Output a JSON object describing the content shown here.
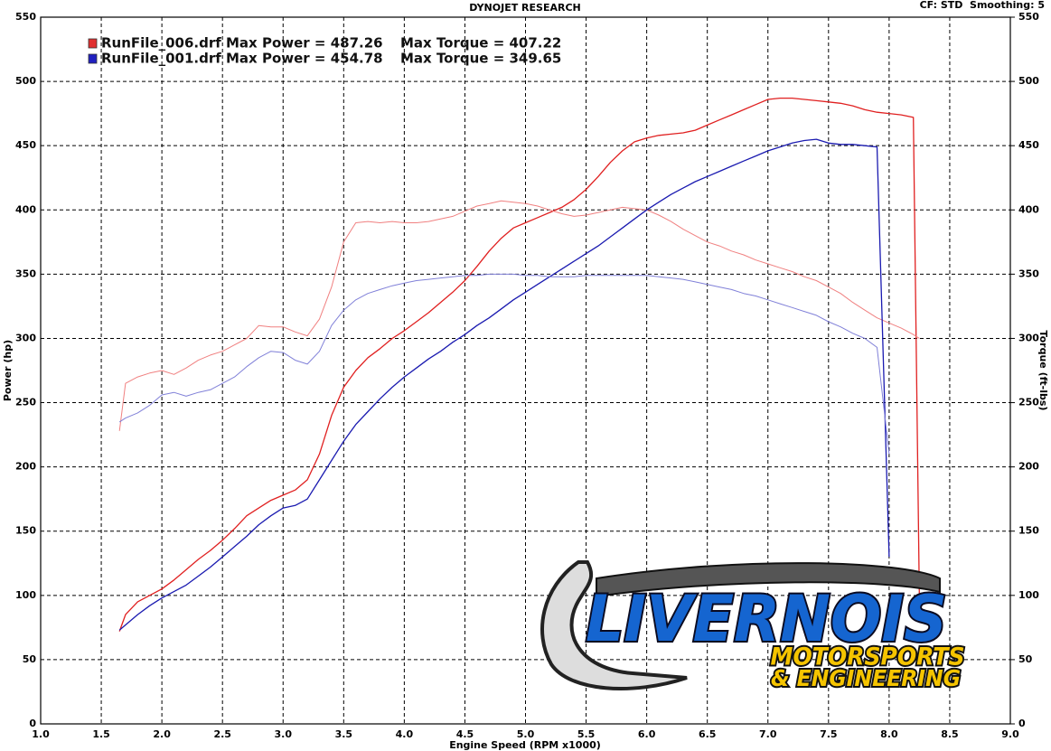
{
  "chart_data": {
    "type": "line",
    "title": "DYNOJET RESEARCH",
    "subtitle": "CF: STD  Smoothing: 5",
    "x_label": "Engine Speed (RPM x1000)",
    "y_label": "Power (hp)",
    "y2_label": "Torque (ft-lbs)",
    "legend": [
      {
        "file_power": "RunFile_006.drf Max Power = 487.26",
        "torque": "Max Torque = 407.22",
        "color": "#e03030"
      },
      {
        "file_power": "RunFile_001.drf Max Power = 454.78",
        "torque": "Max Torque = 349.65",
        "color": "#2020c0"
      }
    ],
    "grid": true,
    "xlim": [
      1,
      9
    ],
    "xticks": [
      {
        "value": 1,
        "label": "1.0"
      },
      1.5,
      {
        "value": 2,
        "label": "2.0"
      },
      2.5,
      {
        "value": 3,
        "label": "3.0"
      },
      3.5,
      {
        "value": 4,
        "label": "4.0"
      },
      4.5,
      {
        "value": 5,
        "label": "5.0"
      },
      5.5,
      {
        "value": 6,
        "label": "6.0"
      },
      6.5,
      {
        "value": 7,
        "label": "7.0"
      },
      7.5,
      {
        "value": 8,
        "label": "8.0"
      },
      8.5,
      {
        "value": 9,
        "label": "9.0"
      }
    ],
    "ylim": [
      0,
      550
    ],
    "yticks": [
      0,
      50,
      100,
      150,
      200,
      250,
      300,
      350,
      400,
      450,
      500,
      550
    ],
    "y2lim": [
      0,
      550
    ],
    "y2ticks": [
      0,
      50,
      100,
      150,
      200,
      250,
      300,
      350,
      400,
      450,
      500,
      550
    ],
    "x": [
      1.65,
      1.7,
      1.8,
      1.9,
      2.0,
      2.1,
      2.2,
      2.3,
      2.4,
      2.5,
      2.6,
      2.7,
      2.8,
      2.9,
      3.0,
      3.1,
      3.2,
      3.3,
      3.4,
      3.5,
      3.6,
      3.7,
      3.8,
      3.9,
      4.0,
      4.1,
      4.2,
      4.3,
      4.4,
      4.5,
      4.6,
      4.7,
      4.8,
      4.9,
      5.0,
      5.1,
      5.2,
      5.3,
      5.4,
      5.5,
      5.6,
      5.7,
      5.8,
      5.9,
      6.0,
      6.1,
      6.2,
      6.3,
      6.4,
      6.5,
      6.6,
      6.7,
      6.8,
      6.9,
      7.0,
      7.1,
      7.2,
      7.3,
      7.4,
      7.5,
      7.6,
      7.7,
      7.8,
      7.9,
      8.0,
      8.1,
      8.2,
      8.25
    ],
    "series": [
      {
        "color": "#e02020",
        "axis": "y",
        "width": 1.3,
        "values": [
          72,
          85,
          95,
          100,
          105,
          112,
          120,
          128,
          135,
          143,
          152,
          162,
          168,
          174,
          178,
          182,
          190,
          210,
          240,
          262,
          275,
          285,
          292,
          300,
          306,
          313,
          320,
          328,
          336,
          345,
          356,
          368,
          378,
          386,
          390,
          394,
          398,
          402,
          408,
          416,
          426,
          437,
          446,
          453,
          456,
          458,
          459,
          460,
          462,
          466,
          470,
          474,
          478,
          482,
          486,
          487,
          487,
          486,
          485,
          484,
          483,
          481,
          478,
          476,
          475,
          474,
          472,
          95
        ]
      },
      {
        "color": "#f08080",
        "axis": "y2",
        "width": 1,
        "values": [
          228,
          265,
          270,
          273,
          275,
          272,
          277,
          283,
          287,
          290,
          295,
          300,
          310,
          309,
          309,
          305,
          302,
          315,
          340,
          375,
          390,
          391,
          390,
          391,
          390,
          390,
          391,
          393,
          395,
          399,
          403,
          405,
          407,
          406,
          405,
          403,
          400,
          397,
          395,
          396,
          398,
          400,
          402,
          401,
          400,
          396,
          391,
          385,
          380,
          375,
          372,
          368,
          365,
          361,
          358,
          355,
          352,
          348,
          345,
          340,
          335,
          328,
          322,
          316,
          312,
          308,
          303,
          300
        ]
      },
      {
        "color": "#1a1ab0",
        "axis": "y",
        "width": 1.3,
        "values": [
          73,
          77,
          85,
          92,
          98,
          103,
          108,
          115,
          122,
          130,
          138,
          146,
          155,
          162,
          168,
          170,
          175,
          190,
          205,
          220,
          233,
          243,
          253,
          262,
          270,
          277,
          284,
          290,
          297,
          303,
          310,
          316,
          323,
          330,
          336,
          342,
          348,
          354,
          360,
          366,
          372,
          379,
          386,
          393,
          400,
          406,
          412,
          417,
          422,
          426,
          430,
          434,
          438,
          442,
          446,
          449,
          452,
          454,
          455,
          452,
          451,
          451,
          450,
          449,
          130,
          null,
          null,
          null
        ]
      },
      {
        "color": "#8080d8",
        "axis": "y2",
        "width": 1,
        "values": [
          235,
          238,
          242,
          248,
          256,
          258,
          255,
          258,
          260,
          265,
          270,
          278,
          285,
          290,
          289,
          283,
          280,
          290,
          310,
          322,
          330,
          335,
          338,
          341,
          343,
          345,
          346,
          347,
          348,
          349,
          349,
          350,
          350,
          350,
          349,
          349,
          348,
          348,
          348,
          349,
          349,
          349,
          349,
          349,
          349,
          348,
          347,
          346,
          344,
          342,
          340,
          338,
          335,
          333,
          330,
          327,
          324,
          321,
          318,
          313,
          309,
          304,
          300,
          293,
          210,
          null,
          null,
          null
        ]
      }
    ]
  },
  "logo": {
    "name": "LIVERNOIS",
    "line1": "MOTORSPORTS",
    "line2": "& ENGINEERING"
  }
}
